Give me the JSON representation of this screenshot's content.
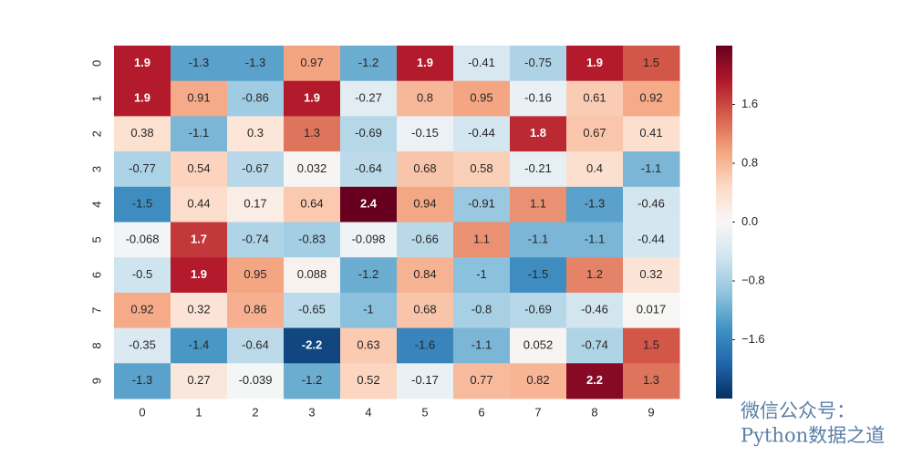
{
  "chart_data": {
    "type": "heatmap",
    "x_categories": [
      "0",
      "1",
      "2",
      "3",
      "4",
      "5",
      "6",
      "7",
      "8",
      "9"
    ],
    "y_categories": [
      "0",
      "1",
      "2",
      "3",
      "4",
      "5",
      "6",
      "7",
      "8",
      "9"
    ],
    "values": [
      [
        1.9,
        -1.3,
        -1.3,
        0.97,
        -1.2,
        1.9,
        -0.41,
        -0.75,
        1.9,
        1.5
      ],
      [
        1.9,
        0.91,
        -0.86,
        1.9,
        -0.27,
        0.8,
        0.95,
        -0.16,
        0.61,
        0.92
      ],
      [
        0.38,
        -1.1,
        0.3,
        1.3,
        -0.69,
        -0.15,
        -0.44,
        1.8,
        0.67,
        0.41
      ],
      [
        -0.77,
        0.54,
        -0.67,
        0.032,
        -0.64,
        0.68,
        0.58,
        -0.21,
        0.4,
        -1.1
      ],
      [
        -1.5,
        0.44,
        0.17,
        0.64,
        2.4,
        0.94,
        -0.91,
        1.1,
        -1.3,
        -0.46
      ],
      [
        -0.068,
        1.7,
        -0.74,
        -0.83,
        -0.098,
        -0.66,
        1.1,
        -1.1,
        -1.1,
        -0.44
      ],
      [
        -0.5,
        1.9,
        0.95,
        0.088,
        -1.2,
        0.84,
        -1,
        -1.5,
        1.2,
        0.32
      ],
      [
        0.92,
        0.32,
        0.86,
        -0.65,
        -1,
        0.68,
        -0.8,
        -0.69,
        -0.46,
        0.017
      ],
      [
        -0.35,
        -1.4,
        -0.64,
        -2.2,
        0.63,
        -1.6,
        -1.1,
        0.052,
        -0.74,
        1.5
      ],
      [
        -1.3,
        0.27,
        -0.039,
        -1.2,
        0.52,
        -0.17,
        0.77,
        0.82,
        2.2,
        1.3
      ]
    ],
    "colormap": [
      "#053061",
      "#2166ac",
      "#4393c3",
      "#92c5de",
      "#d1e5f0",
      "#f7f7f7",
      "#fddbc7",
      "#f4a582",
      "#d6604d",
      "#b2182b",
      "#67001f"
    ],
    "clim": [
      -2.4,
      2.4
    ],
    "cticks": [
      {
        "value": -1.6,
        "label": "−1.6"
      },
      {
        "value": -0.8,
        "label": "−0.8"
      },
      {
        "value": 0,
        "label": "0.0"
      },
      0.8,
      1.6
    ],
    "watermark": [
      "微信公众号：",
      "Python数据之道"
    ]
  }
}
